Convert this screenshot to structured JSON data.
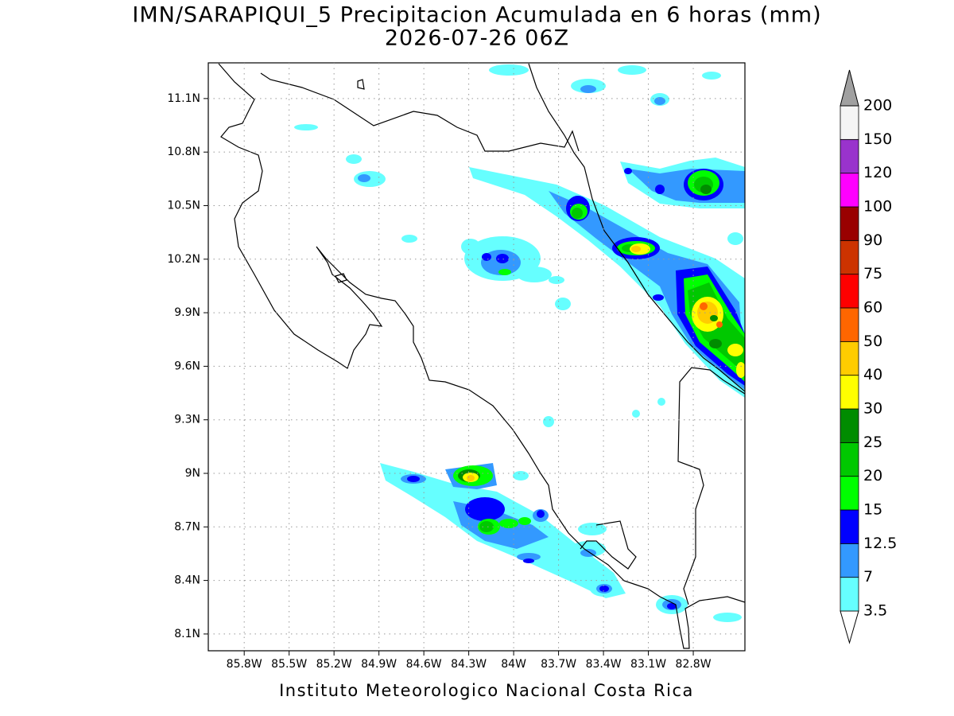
{
  "title": "IMN/SARAPIQUI_5 Precipitacion Acumulada en 6 horas (mm)",
  "subtitle": "2026-07-26 06Z",
  "footer": "Instituto Meteorologico Nacional Costa Rica",
  "map": {
    "xlim": [
      -86.04,
      -82.455
    ],
    "ylim": [
      8.006,
      11.3
    ],
    "grid": true,
    "xticks": [
      {
        "value": -85.8,
        "label": "85.8W"
      },
      {
        "value": -85.5,
        "label": "85.5W"
      },
      {
        "value": -85.2,
        "label": "85.2W"
      },
      {
        "value": -84.9,
        "label": "84.9W"
      },
      {
        "value": -84.6,
        "label": "84.6W"
      },
      {
        "value": -84.3,
        "label": "84.3W"
      },
      {
        "value": -84,
        "label": "84W"
      },
      {
        "value": -83.7,
        "label": "83.7W"
      },
      {
        "value": -83.4,
        "label": "83.4W"
      },
      {
        "value": -83.1,
        "label": "83.1W"
      },
      {
        "value": -82.8,
        "label": "82.8W"
      }
    ],
    "yticks": [
      {
        "value": 8.1,
        "label": "8.1N"
      },
      {
        "value": 8.4,
        "label": "8.4N"
      },
      {
        "value": 8.7,
        "label": "8.7N"
      },
      {
        "value": 9,
        "label": "9N"
      },
      {
        "value": 9.3,
        "label": "9.3N"
      },
      {
        "value": 9.6,
        "label": "9.6N"
      },
      {
        "value": 9.9,
        "label": "9.9N"
      },
      {
        "value": 10.2,
        "label": "10.2N"
      },
      {
        "value": 10.5,
        "label": "10.5N"
      },
      {
        "value": 10.8,
        "label": "10.8N"
      },
      {
        "value": 11.1,
        "label": "11.1N"
      }
    ]
  },
  "colorbar": {
    "levels": [
      3.5,
      7,
      12.5,
      15,
      20,
      25,
      30,
      40,
      50,
      60,
      75,
      90,
      100,
      120,
      150,
      200
    ],
    "colors": [
      "#ffffff",
      "#66ffff",
      "#3399ff",
      "#0000ff",
      "#00ff00",
      "#00c800",
      "#008c00",
      "#ffff00",
      "#ffcc00",
      "#ff6600",
      "#ff0000",
      "#cc3300",
      "#990000",
      "#ff00ff",
      "#9933cc",
      "#f5f5f5",
      "#a0a0a0"
    ]
  }
}
